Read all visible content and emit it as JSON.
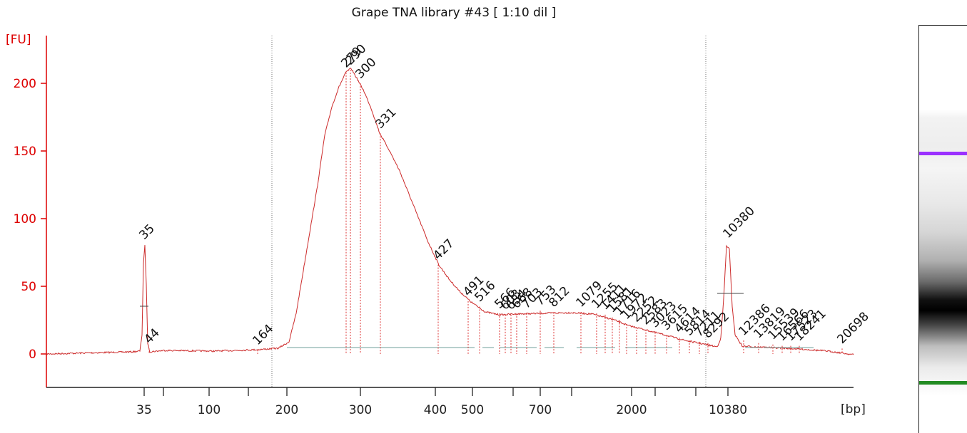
{
  "chart_data": {
    "type": "line",
    "title": "Grape TNA library #43  [ 1:10 dil ]",
    "ylabel": "[FU]",
    "xlabel": "[bp]",
    "ylim": [
      -20,
      225
    ],
    "yticks": [
      0,
      50,
      100,
      150,
      200
    ],
    "xtick_labels": [
      "35",
      "100",
      "200",
      "300",
      "400",
      "500",
      "700",
      "2000",
      "10380"
    ],
    "line_color": "#cc2a2a",
    "markers": [
      {
        "label": "35",
        "color": "#228b22"
      },
      {
        "label": "10380",
        "color": "#9b30ff"
      }
    ],
    "peaks": [
      {
        "label": "35",
        "fu": 81,
        "color": "#228b22"
      },
      {
        "label": "44",
        "fu": 4
      },
      {
        "label": "164",
        "fu": 3
      },
      {
        "label": "279",
        "fu": 208
      },
      {
        "label": "290",
        "fu": 210
      },
      {
        "label": "300",
        "fu": 200
      },
      {
        "label": "331",
        "fu": 163
      },
      {
        "label": "427",
        "fu": 66
      },
      {
        "label": "491",
        "fu": 39
      },
      {
        "label": "516",
        "fu": 35
      },
      {
        "label": "566",
        "fu": 30
      },
      {
        "label": "603",
        "fu": 29
      },
      {
        "label": "634",
        "fu": 29
      },
      {
        "label": "668",
        "fu": 30
      },
      {
        "label": "703",
        "fu": 30
      },
      {
        "label": "753",
        "fu": 32
      },
      {
        "label": "812",
        "fu": 31
      },
      {
        "label": "1079",
        "fu": 31
      },
      {
        "label": "1255",
        "fu": 30
      },
      {
        "label": "1411",
        "fu": 29
      },
      {
        "label": "1581",
        "fu": 27
      },
      {
        "label": "1716",
        "fu": 25
      },
      {
        "label": "1972",
        "fu": 22
      },
      {
        "label": "2252",
        "fu": 20
      },
      {
        "label": "2583",
        "fu": 18
      },
      {
        "label": "3023",
        "fu": 16
      },
      {
        "label": "3615",
        "fu": 14
      },
      {
        "label": "4614",
        "fu": 12
      },
      {
        "label": "5814",
        "fu": 10
      },
      {
        "label": "7211",
        "fu": 9
      },
      {
        "label": "8292",
        "fu": 8
      },
      {
        "label": "10380",
        "fu": 82,
        "color": "#9b30ff"
      },
      {
        "label": "12386",
        "fu": 10
      },
      {
        "label": "13819",
        "fu": 8
      },
      {
        "label": "15539",
        "fu": 7
      },
      {
        "label": "16566",
        "fu": 6
      },
      {
        "label": "17523",
        "fu": 6
      },
      {
        "label": "18241",
        "fu": 6
      },
      {
        "label": "20698",
        "fu": 4
      }
    ]
  }
}
